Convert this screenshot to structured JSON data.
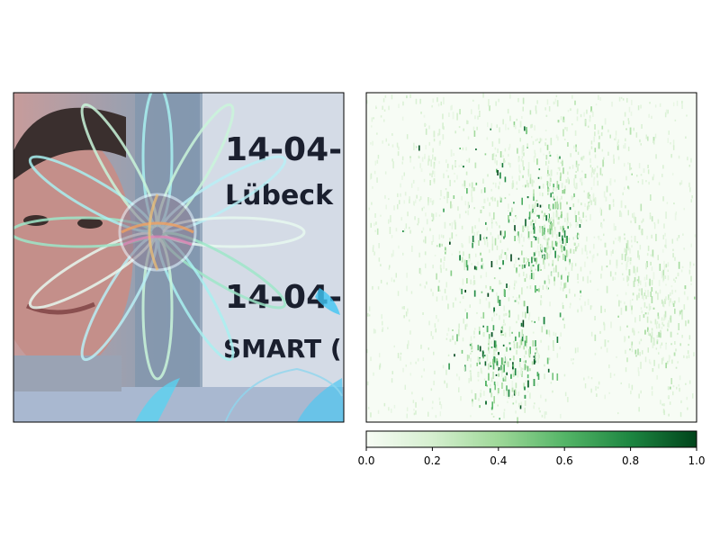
{
  "left_panel": {
    "card_lines": [
      "14-04-",
      "Lübeck",
      "14-04-",
      "SMART ("
    ]
  },
  "chart_data": {
    "type": "heatmap",
    "title": "",
    "xlabel": "",
    "ylabel": "",
    "colormap": "Greens",
    "colorbar": {
      "range": [
        0.0,
        1.0
      ],
      "ticks": [
        "0.0",
        "0.2",
        "0.4",
        "0.6",
        "0.8",
        "1.0"
      ],
      "tick_values": [
        0.0,
        0.2,
        0.4,
        0.6,
        0.8,
        1.0
      ],
      "placement": "bottom"
    },
    "grid": false,
    "colors": {
      "low": "#f7fcf5",
      "high": "#00441b"
    }
  }
}
